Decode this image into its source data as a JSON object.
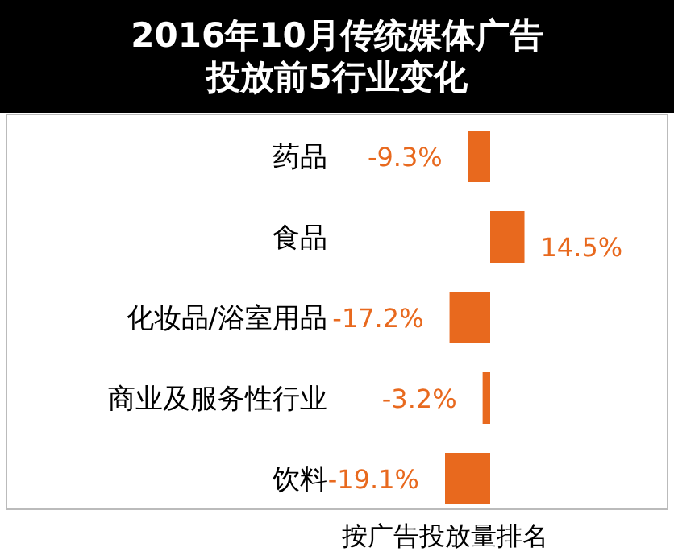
{
  "chart_data": {
    "type": "bar",
    "orientation": "horizontal",
    "title": "2016年10月传统媒体广告投放前5行业变化",
    "categories": [
      "药品",
      "食品",
      "化妆品/浴室用品",
      "商业及服务性行业",
      "饮料"
    ],
    "values": [
      -9.3,
      14.5,
      -17.2,
      -3.2,
      -19.1
    ],
    "value_labels": [
      "-9.3%",
      "14.5%",
      "-17.2%",
      "-3.2%",
      "-19.1%"
    ],
    "color": "#e8691e",
    "annotations": [
      "按广告投放量排名"
    ]
  }
}
